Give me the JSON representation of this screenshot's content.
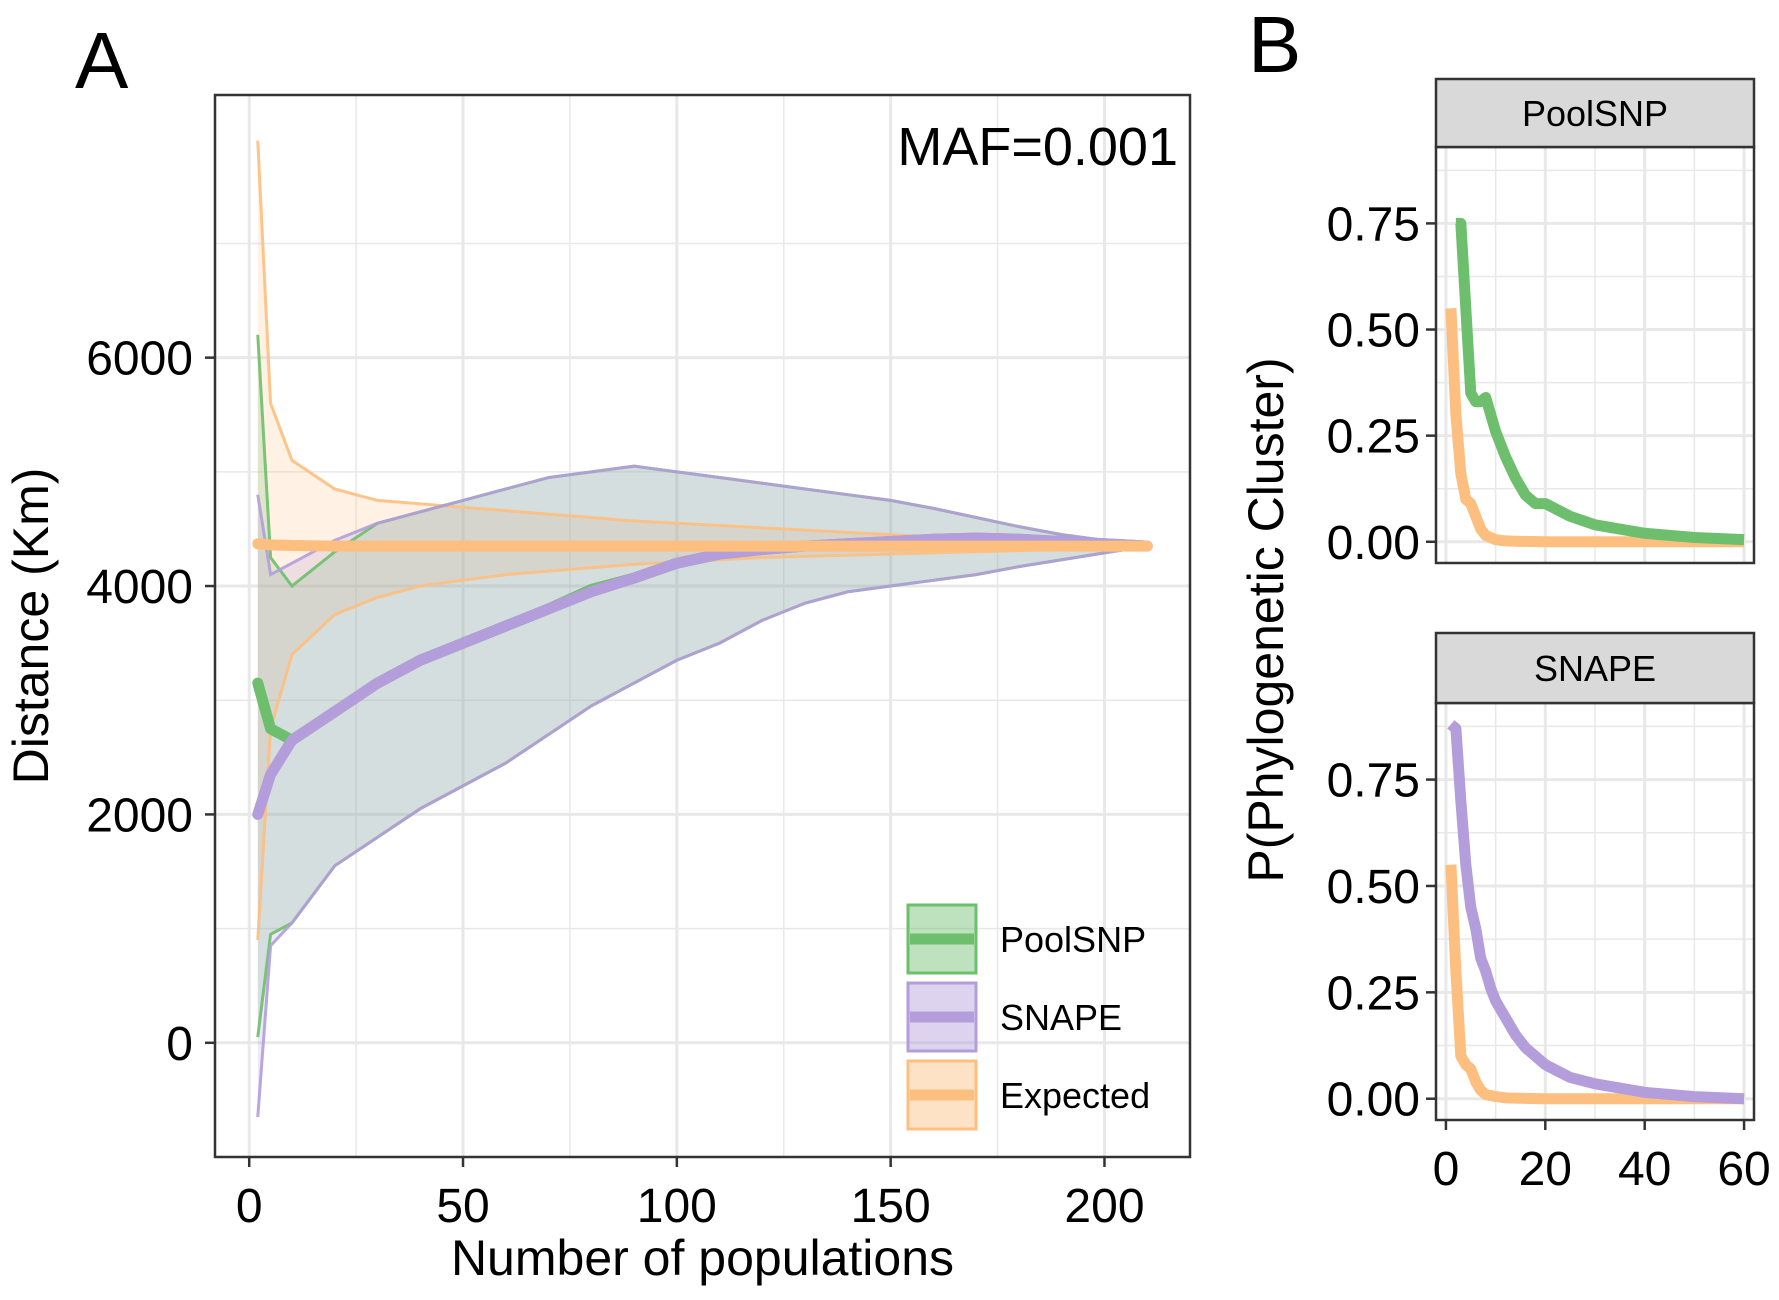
{
  "figure": {
    "panel_a_label": "A",
    "panel_b_label": "B"
  },
  "colors": {
    "poolsnp": "#6dbf6d",
    "snape": "#b39ddb",
    "expected": "#fdbf80",
    "grid": "#e8e8e8",
    "strip": "#d9d9d9"
  },
  "chart_data": [
    {
      "type": "line",
      "panel": "A",
      "title": "",
      "annotation": "MAF=0.001",
      "xlabel": "Number of populations",
      "ylabel": "Distance (Km)",
      "xlim": [
        -8,
        220
      ],
      "ylim": [
        -1000,
        8300
      ],
      "x_ticks": [
        0,
        50,
        100,
        150,
        200
      ],
      "y_ticks": [
        0,
        2000,
        4000,
        6000
      ],
      "grid": true,
      "legend_position": "bottom-right",
      "x": [
        2,
        5,
        10,
        20,
        30,
        40,
        50,
        60,
        70,
        80,
        90,
        100,
        110,
        120,
        130,
        140,
        150,
        160,
        170,
        180,
        190,
        200,
        210
      ],
      "series": [
        {
          "name": "PoolSNP",
          "mean": [
            3150,
            2750,
            2650,
            2900,
            3150,
            3350,
            3500,
            3650,
            3800,
            3970,
            4070,
            4200,
            4280,
            4320,
            4350,
            4370,
            4390,
            4410,
            4420,
            4410,
            4390,
            4370,
            4350
          ],
          "lower": [
            50,
            950,
            1050,
            1550,
            1800,
            2050,
            2250,
            2450,
            2700,
            2950,
            3150,
            3350,
            3500,
            3700,
            3850,
            3950,
            4000,
            4050,
            4100,
            4170,
            4230,
            4290,
            4350
          ],
          "upper": [
            6200,
            4250,
            4000,
            4300,
            4550,
            4650,
            4750,
            4850,
            4950,
            5000,
            5050,
            5000,
            4950,
            4900,
            4850,
            4800,
            4750,
            4680,
            4600,
            4520,
            4450,
            4400,
            4350
          ]
        },
        {
          "name": "SNAPE",
          "mean": [
            2000,
            2350,
            2650,
            2900,
            3150,
            3350,
            3500,
            3650,
            3800,
            3950,
            4070,
            4200,
            4280,
            4320,
            4350,
            4370,
            4390,
            4410,
            4420,
            4410,
            4390,
            4370,
            4350
          ],
          "lower": [
            -650,
            850,
            1050,
            1550,
            1800,
            2050,
            2250,
            2450,
            2700,
            2950,
            3150,
            3350,
            3500,
            3700,
            3850,
            3950,
            4000,
            4050,
            4100,
            4170,
            4230,
            4290,
            4350
          ],
          "upper": [
            4800,
            4100,
            4200,
            4400,
            4550,
            4650,
            4750,
            4850,
            4950,
            5000,
            5050,
            5000,
            4950,
            4900,
            4850,
            4800,
            4750,
            4680,
            4600,
            4520,
            4450,
            4400,
            4350
          ]
        },
        {
          "name": "Expected",
          "mean": [
            4370,
            4360,
            4355,
            4350,
            4350,
            4350,
            4350,
            4350,
            4350,
            4350,
            4350,
            4350,
            4350,
            4350,
            4350,
            4350,
            4350,
            4350,
            4350,
            4350,
            4350,
            4350,
            4350
          ],
          "lower": [
            900,
            2750,
            3400,
            3750,
            3900,
            4000,
            4050,
            4100,
            4130,
            4160,
            4190,
            4210,
            4230,
            4250,
            4260,
            4270,
            4280,
            4290,
            4300,
            4310,
            4320,
            4330,
            4350
          ],
          "upper": [
            7900,
            5600,
            5100,
            4850,
            4750,
            4720,
            4690,
            4660,
            4630,
            4600,
            4570,
            4550,
            4530,
            4510,
            4490,
            4470,
            4450,
            4430,
            4410,
            4390,
            4375,
            4365,
            4350
          ]
        }
      ]
    },
    {
      "type": "line",
      "panel": "B",
      "title": "",
      "xlabel": "",
      "ylabel": "P(Phylogenetic Cluster)",
      "xlim": [
        -2,
        62
      ],
      "ylim": [
        -0.05,
        0.93
      ],
      "x_ticks": [
        0,
        20,
        40,
        60
      ],
      "y_ticks": [
        0.0,
        0.25,
        0.5,
        0.75
      ],
      "grid": true,
      "facets": [
        {
          "strip": "PoolSNP",
          "series": [
            {
              "name": "PoolSNP",
              "x": [
                2,
                3,
                4,
                5,
                6,
                7,
                8,
                9,
                10,
                12,
                14,
                16,
                18,
                20,
                25,
                30,
                35,
                40,
                50,
                60
              ],
              "values": [
                0.75,
                0.75,
                0.55,
                0.35,
                0.33,
                0.33,
                0.34,
                0.3,
                0.26,
                0.2,
                0.15,
                0.11,
                0.09,
                0.09,
                0.06,
                0.04,
                0.03,
                0.02,
                0.01,
                0.005
              ]
            },
            {
              "name": "Expected",
              "x": [
                1,
                2,
                3,
                4,
                5,
                6,
                7,
                8,
                10,
                12,
                15,
                20,
                30,
                40,
                50,
                60
              ],
              "values": [
                0.55,
                0.3,
                0.16,
                0.1,
                0.09,
                0.06,
                0.03,
                0.015,
                0.005,
                0.002,
                0.001,
                0.0,
                0.0,
                0.0,
                0.0,
                0.0
              ]
            }
          ]
        },
        {
          "strip": "SNAPE",
          "series": [
            {
              "name": "SNAPE",
              "x": [
                1,
                2,
                3,
                4,
                5,
                6,
                7,
                8,
                9,
                10,
                12,
                14,
                16,
                18,
                20,
                25,
                30,
                35,
                40,
                50,
                60
              ],
              "values": [
                0.88,
                0.87,
                0.7,
                0.55,
                0.45,
                0.4,
                0.33,
                0.3,
                0.26,
                0.23,
                0.19,
                0.15,
                0.12,
                0.1,
                0.08,
                0.05,
                0.035,
                0.025,
                0.015,
                0.005,
                0.0
              ]
            },
            {
              "name": "Expected",
              "x": [
                1,
                2,
                3,
                4,
                5,
                6,
                7,
                8,
                10,
                12,
                15,
                20,
                30,
                40,
                50,
                60
              ],
              "values": [
                0.55,
                0.3,
                0.1,
                0.08,
                0.07,
                0.04,
                0.02,
                0.01,
                0.005,
                0.002,
                0.001,
                0.0,
                0.0,
                0.0,
                0.0,
                0.0
              ]
            }
          ]
        }
      ]
    }
  ]
}
